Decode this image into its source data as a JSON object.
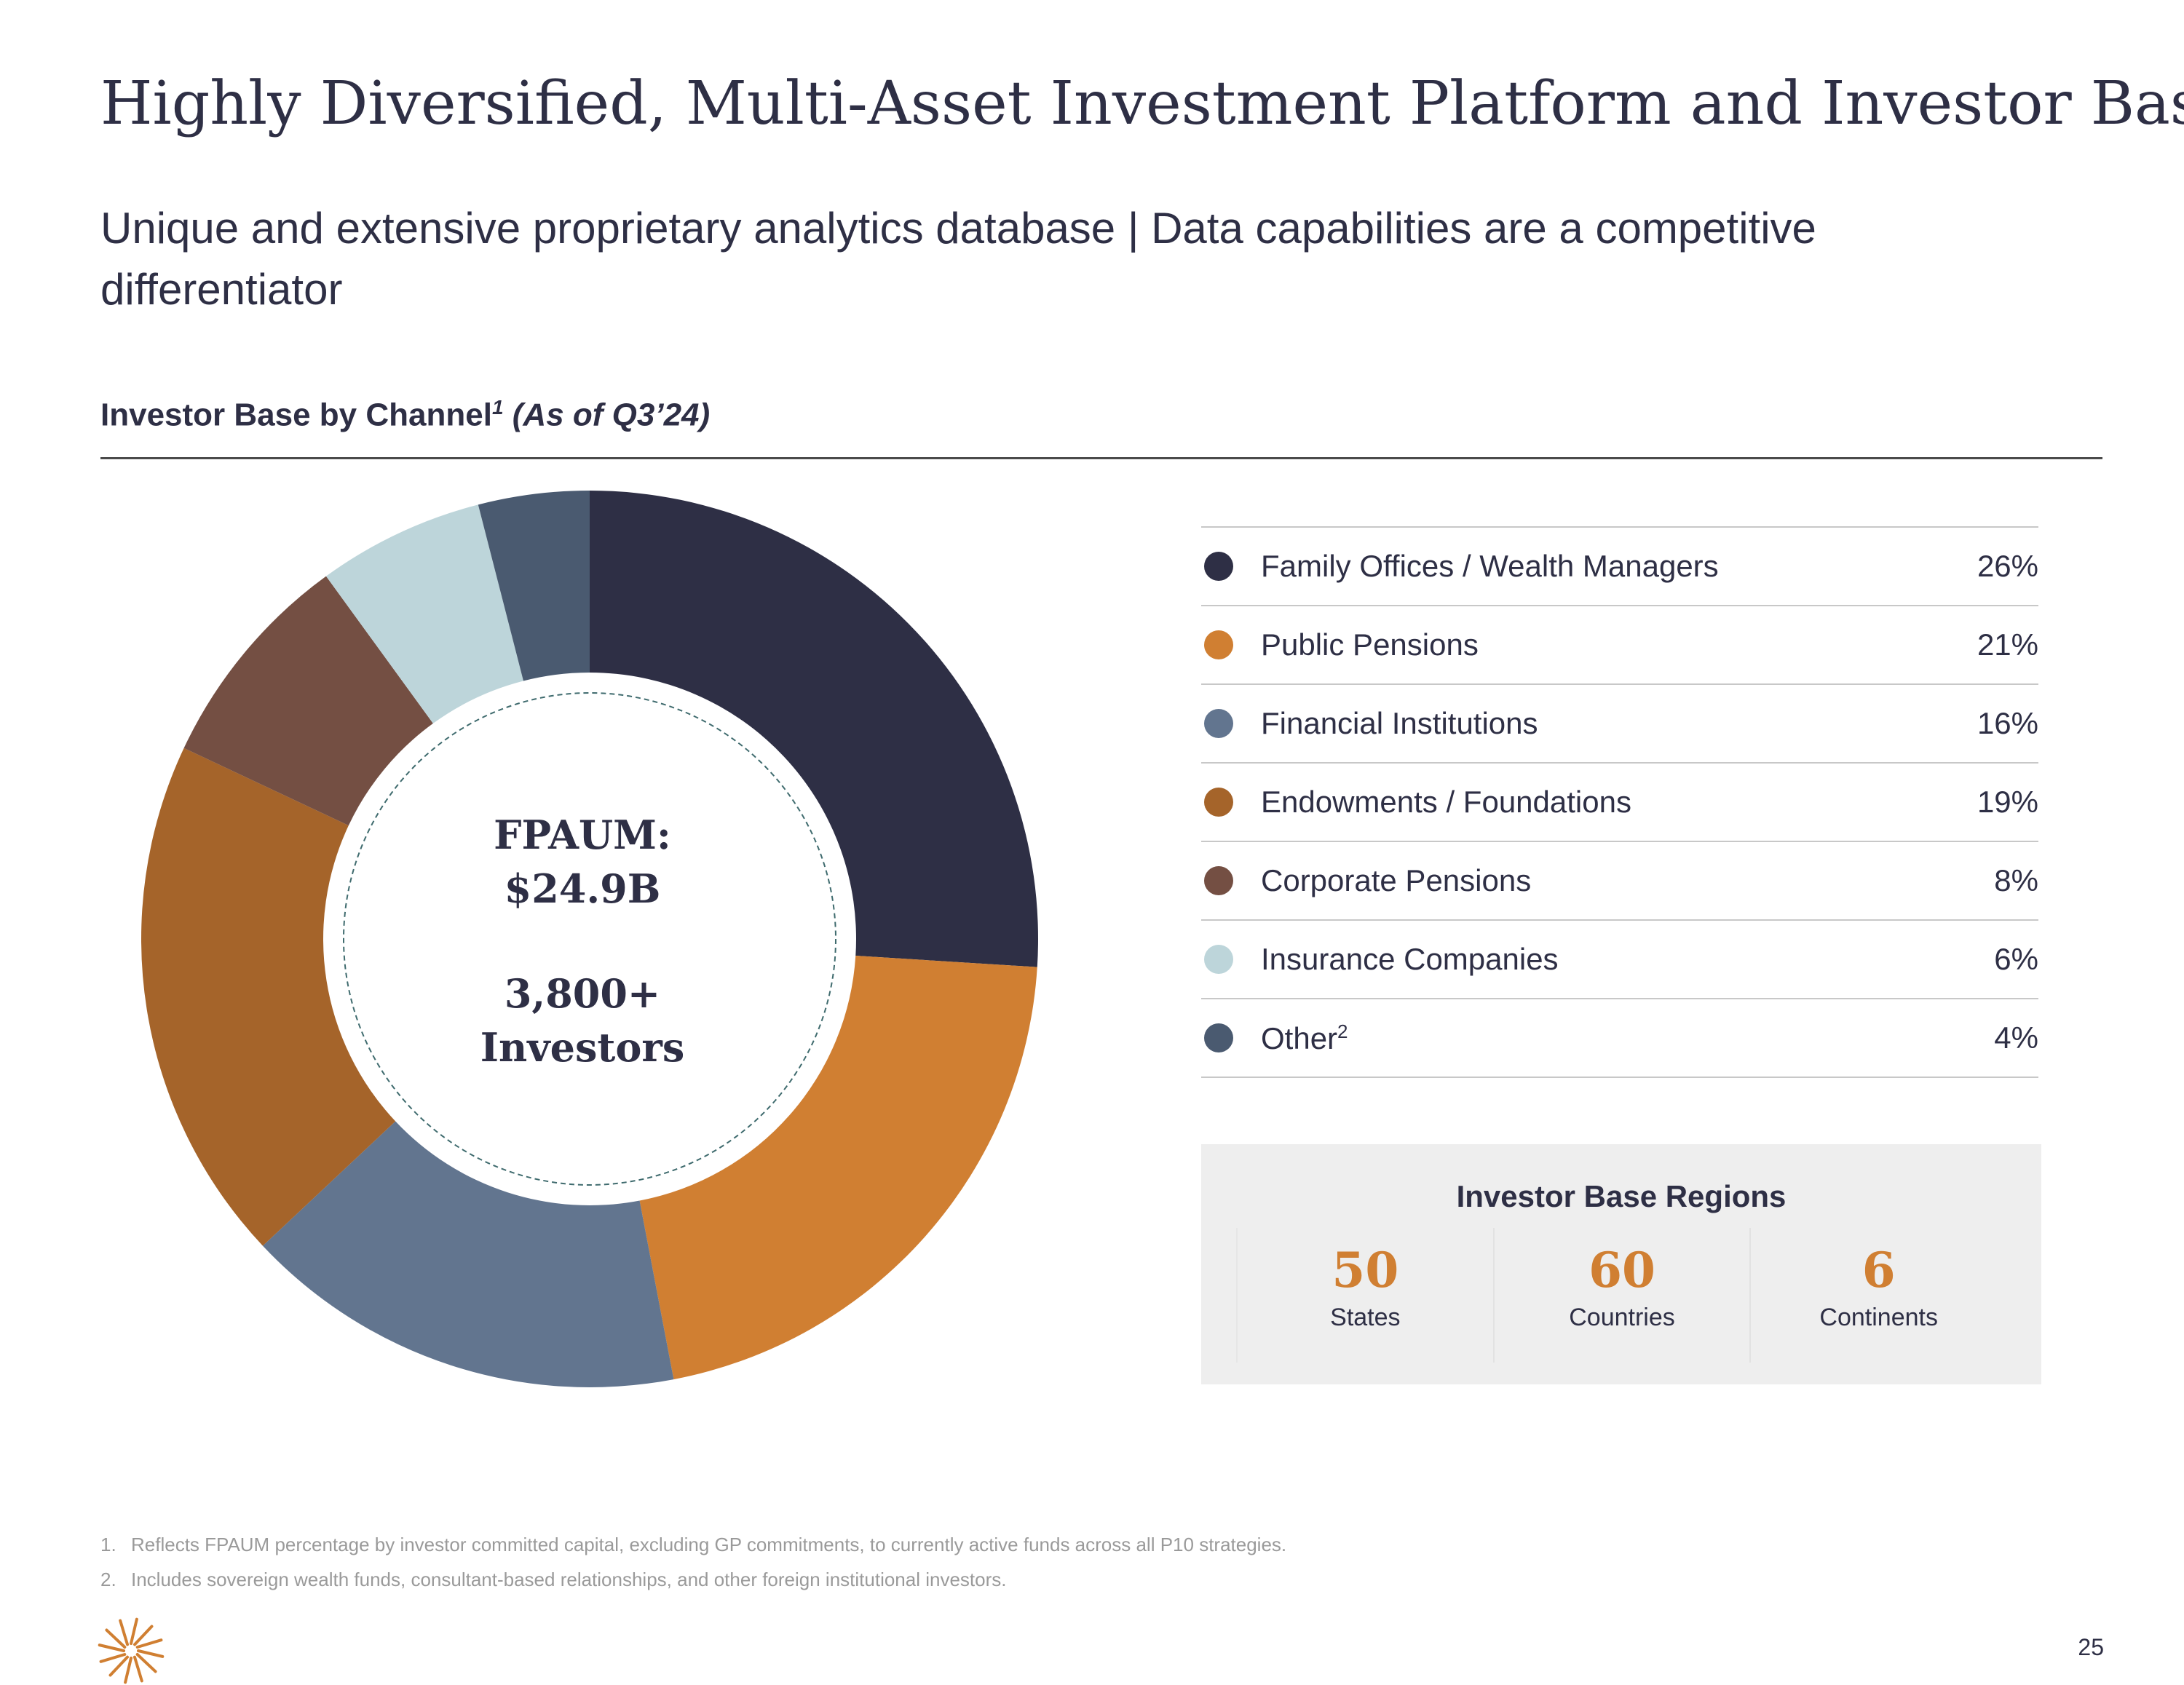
{
  "title": "Highly Diversified, Multi-Asset Investment Platform and Investor Base",
  "subtitle": "Unique and extensive proprietary analytics database | Data capabilities are a competitive differentiator",
  "section": {
    "heading": "Investor Base by Channel",
    "heading_sup": "1",
    "heading_note": "(As of Q3’24)"
  },
  "donut_center": {
    "line1": "FPAUM:",
    "line2": "$24.9B",
    "line3": "3,800+",
    "line4": "Investors"
  },
  "chart_data": {
    "type": "pie",
    "title": "Investor Base by Channel (As of Q3’24)",
    "donut": true,
    "legend_position": "right",
    "categories": [
      "Family Offices / Wealth Managers",
      "Public Pensions",
      "Financial Institutions",
      "Endowments / Foundations",
      "Corporate Pensions",
      "Insurance Companies",
      "Other"
    ],
    "values": [
      26,
      21,
      16,
      19,
      8,
      6,
      4
    ],
    "display_values": [
      "26%",
      "21%",
      "16%",
      "19%",
      "8%",
      "6%",
      "4%"
    ],
    "superscripts": [
      "",
      "",
      "",
      "",
      "",
      "",
      "2"
    ],
    "colors": [
      "#2e2f45",
      "#d07f32",
      "#62758f",
      "#a5642a",
      "#744f43",
      "#bdd5da",
      "#4a5a70"
    ]
  },
  "regions": {
    "title": "Investor Base Regions",
    "items": [
      {
        "value": "50",
        "label": "States"
      },
      {
        "value": "60",
        "label": "Countries"
      },
      {
        "value": "6",
        "label": "Continents"
      }
    ]
  },
  "footnotes": [
    {
      "num": "1.",
      "text": "Reflects FPAUM percentage by investor committed capital, excluding GP commitments, to currently active funds across all P10 strategies."
    },
    {
      "num": "2.",
      "text": "Includes sovereign wealth funds, consultant-based relationships, and other foreign institutional investors."
    }
  ],
  "logo_icon": "p10-starburst-logo",
  "logo_color": "#d07f32",
  "page_number": "25"
}
